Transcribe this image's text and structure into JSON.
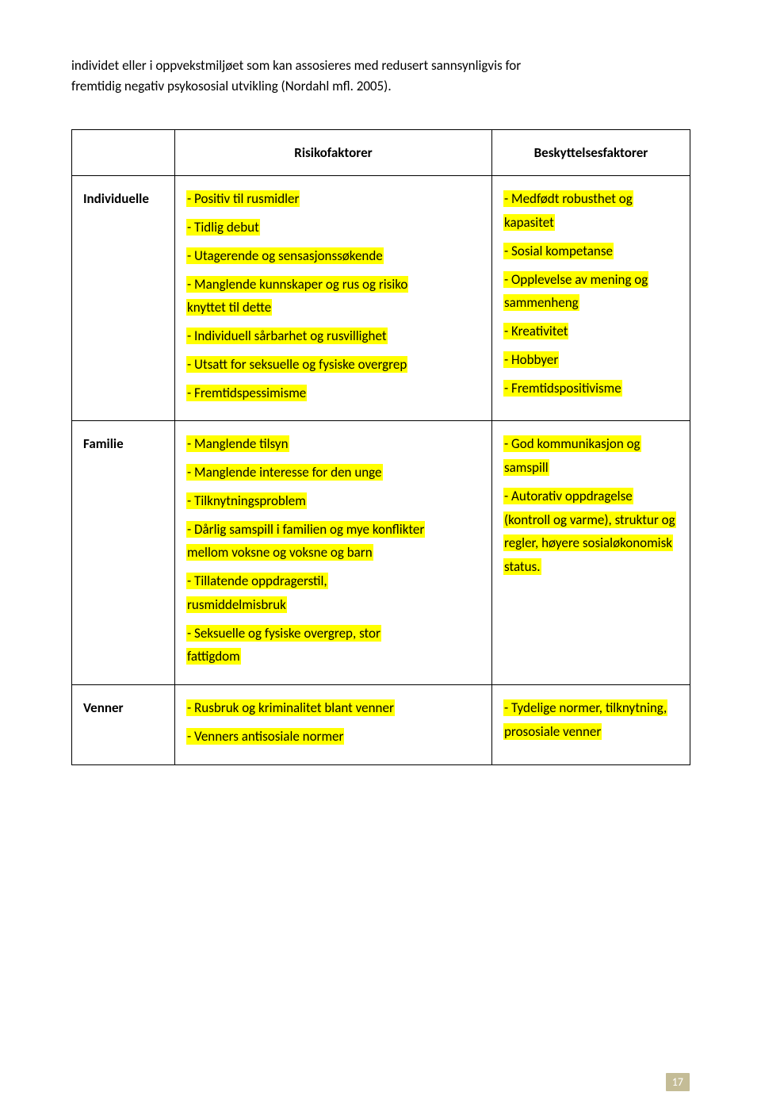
{
  "intro": {
    "line1": "individet eller i oppvekstmiljøet som kan assosieres med redusert sannsynligvis for",
    "line2": "fremtidig negativ psykososial utvikling (Nordahl mfl. 2005)."
  },
  "header": {
    "risk": "Risikofaktorer",
    "prot": "Beskyttelsesfaktorer"
  },
  "rows": {
    "individuelle": {
      "label": "Individuelle",
      "risk": {
        "i1": "- Positiv til rusmidler",
        "i2": "- Tidlig debut",
        "i3": "- Utagerende og sensasjonssøkende",
        "i4a": "- Manglende kunnskaper og rus og risiko",
        "i4b": "knyttet til dette",
        "i5": "- Individuell sårbarhet og rusvillighet",
        "i6": "- Utsatt for seksuelle og fysiske overgrep",
        "i7": "- Fremtidspessimisme"
      },
      "prot": {
        "p1a": "- Medfødt robusthet og",
        "p1b": "kapasitet",
        "p2": "- Sosial kompetanse",
        "p3a": "- Opplevelse av mening og",
        "p3b": "sammenheng",
        "p4": "- Kreativitet",
        "p5": "- Hobbyer",
        "p6": "- Fremtidspositivisme"
      }
    },
    "familie": {
      "label": "Familie",
      "risk": {
        "i1": "- Manglende tilsyn",
        "i2": "- Manglende interesse for den unge",
        "i3": "- Tilknytningsproblem",
        "i4a": "- Dårlig samspill i familien og mye konflikter",
        "i4b": "mellom voksne og voksne og barn",
        "i5a": "- Tillatende oppdragerstil,",
        "i5b": "rusmiddelmisbruk",
        "i6a": "- Seksuelle og fysiske overgrep, stor",
        "i6b": "fattigdom"
      },
      "prot": {
        "p1a": "- God kommunikasjon og",
        "p1b": "samspill",
        "p2a": "- Autorativ oppdragelse",
        "p2b": "(kontroll og varme), struktur og",
        "p2c": "regler, høyere sosialøkonomisk",
        "p2d": "status."
      }
    },
    "venner": {
      "label": "Venner",
      "risk": {
        "i1": "- Rusbruk og kriminalitet blant venner",
        "i2": "- Venners antisosiale normer"
      },
      "prot": {
        "p1a": "- Tydelige normer, tilknytning,",
        "p1b": "prososiale venner"
      }
    }
  },
  "pageNumber": "17"
}
